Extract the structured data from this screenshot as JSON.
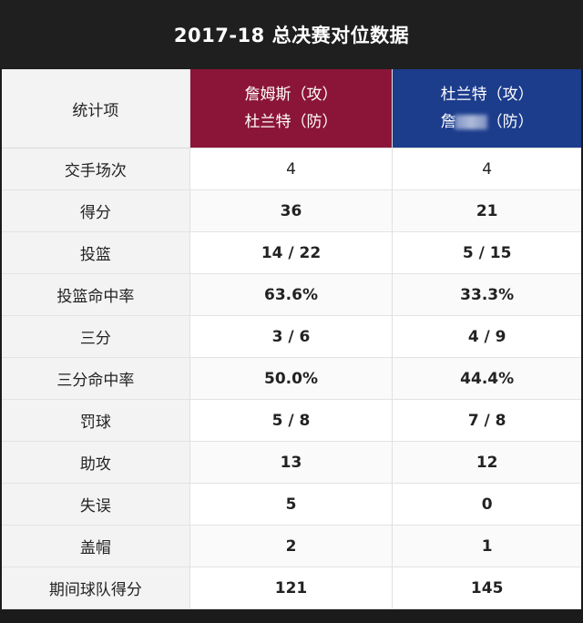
{
  "title": "2017-18 总决赛对位数据",
  "header": {
    "label": "统计项",
    "col_a_line1": "詹姆斯（攻）",
    "col_a_line2": "杜兰特（防）",
    "col_b_line1": "杜兰特（攻）",
    "col_b_line2_visible": "詹",
    "col_b_line2_suffix": "（防）"
  },
  "colors": {
    "col_a_header": "#8b1538",
    "col_b_header": "#1c3c8c",
    "title_bg": "#1f1f1f"
  },
  "rows": [
    {
      "label": "交手场次",
      "a": "4",
      "b": "4"
    },
    {
      "label": "得分",
      "a": "36",
      "b": "21"
    },
    {
      "label": "投篮",
      "a": "14 / 22",
      "b": "5 / 15"
    },
    {
      "label": "投篮命中率",
      "a": "63.6%",
      "b": "33.3%"
    },
    {
      "label": "三分",
      "a": "3 / 6",
      "b": "4 / 9"
    },
    {
      "label": "三分命中率",
      "a": "50.0%",
      "b": "44.4%"
    },
    {
      "label": "罚球",
      "a": "5 / 8",
      "b": "7 / 8"
    },
    {
      "label": "助攻",
      "a": "13",
      "b": "12"
    },
    {
      "label": "失误",
      "a": "5",
      "b": "0"
    },
    {
      "label": "盖帽",
      "a": "2",
      "b": "1"
    },
    {
      "label": "期间球队得分",
      "a": "121",
      "b": "145"
    }
  ]
}
